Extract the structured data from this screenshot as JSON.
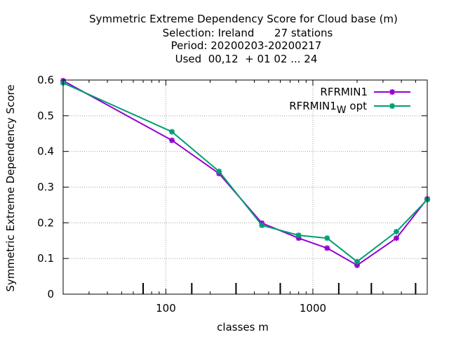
{
  "title_lines": [
    "Symmetric Extreme Dependency Score  for Cloud base (m)",
    "Selection: Ireland      27 stations",
    "Period: 20200203-20200217",
    "Used  00,12  + 01 02 ... 24"
  ],
  "chart_data": {
    "type": "line",
    "title": "Symmetric Extreme Dependency Score  for Cloud base (m)",
    "xlabel": "classes m",
    "ylabel": "Symmetric Extreme Dependency Score",
    "xscale": "log",
    "xlim": [
      20,
      6000
    ],
    "ylim": [
      0,
      0.6
    ],
    "x_ticks": [
      100,
      1000
    ],
    "x_tick_labels": [
      "100",
      "1000"
    ],
    "y_ticks": [
      0,
      0.1,
      0.2,
      0.3,
      0.4,
      0.5,
      0.6
    ],
    "y_tick_labels": [
      "0",
      "0.1",
      "0.2",
      "0.3",
      "0.4",
      "0.5",
      "0.6"
    ],
    "grid": true,
    "legend_position": "top-right",
    "class_marks": [
      70,
      150,
      300,
      600,
      1500,
      2500,
      5000
    ],
    "x": [
      20,
      110,
      230,
      450,
      800,
      1250,
      2000,
      3700,
      6000
    ],
    "series": [
      {
        "name": "RFRMIN1",
        "legend_main": "RFRMIN1",
        "legend_sub": "",
        "legend_suffix": "",
        "color": "#9400d3",
        "values": [
          0.598,
          0.431,
          0.338,
          0.199,
          0.157,
          0.129,
          0.081,
          0.157,
          0.267
        ]
      },
      {
        "name": "RFRMIN1_W opt",
        "legend_main": "RFRMIN1",
        "legend_sub": "W",
        "legend_suffix": " opt",
        "color": "#009e73",
        "values": [
          0.592,
          0.455,
          0.344,
          0.193,
          0.165,
          0.157,
          0.091,
          0.175,
          0.265
        ]
      }
    ]
  }
}
